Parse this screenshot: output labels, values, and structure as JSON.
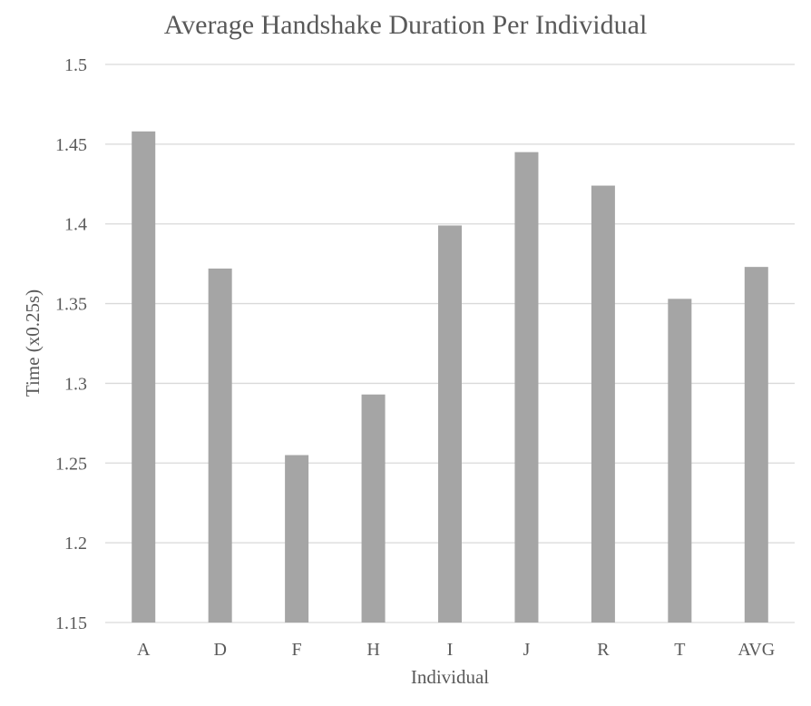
{
  "chart_data": {
    "type": "bar",
    "title": "Average Handshake Duration Per Individual",
    "xlabel": "Individual",
    "ylabel": "Time (x0.25s)",
    "categories": [
      "A",
      "D",
      "F",
      "H",
      "I",
      "J",
      "R",
      "T",
      "AVG"
    ],
    "values": [
      1.458,
      1.372,
      1.255,
      1.293,
      1.399,
      1.445,
      1.424,
      1.353,
      1.373
    ],
    "ylim": [
      1.15,
      1.5
    ],
    "yticks": [
      "1.15",
      "1.2",
      "1.25",
      "1.3",
      "1.35",
      "1.4",
      "1.45",
      "1.5"
    ],
    "grid": true,
    "legend": "none",
    "bar_color": "#a5a5a5",
    "gridline_color": "#d9d9d9",
    "text_color": "#595959"
  }
}
